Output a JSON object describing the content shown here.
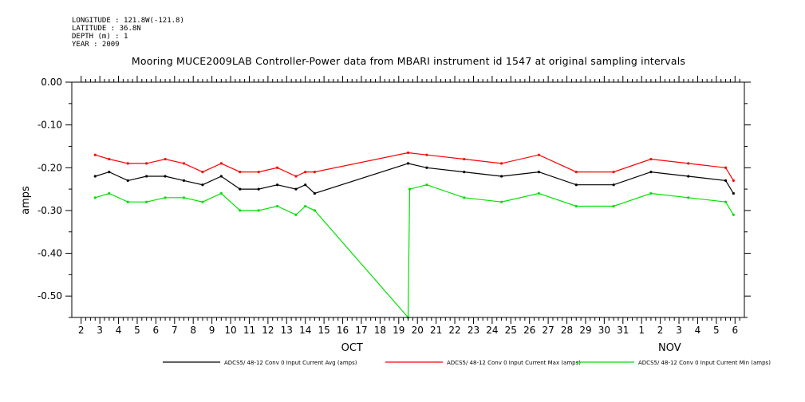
{
  "header": {
    "longitude": "LONGITUDE : 121.8W(-121.8)",
    "latitude": "LATITUDE : 36.8N",
    "depth": "DEPTH (m) : 1",
    "year": "YEAR : 2009"
  },
  "chart_data": {
    "type": "line",
    "title": "Mooring MUCE2009LAB Controller-Power data from MBARI instrument id 1547 at original sampling intervals",
    "ylabel": "amps",
    "ylim": [
      -0.55,
      0.0
    ],
    "yticks": [
      "0.00",
      "-0.10",
      "-0.20",
      "-0.30",
      "-0.40",
      "-0.50"
    ],
    "yticks_values": [
      0.0,
      -0.1,
      -0.2,
      -0.3,
      -0.4,
      -0.5
    ],
    "xlim": [
      "2009-10-01T12:00",
      "2009-11-06T12:00"
    ],
    "xtick_labels": [
      "2",
      "3",
      "4",
      "5",
      "6",
      "7",
      "8",
      "9",
      "10",
      "11",
      "12",
      "13",
      "14",
      "15",
      "16",
      "17",
      "18",
      "19",
      "20",
      "21",
      "22",
      "23",
      "24",
      "25",
      "26",
      "27",
      "28",
      "29",
      "30",
      "31",
      "1",
      "2",
      "3",
      "4",
      "5",
      "6"
    ],
    "month_labels": [
      "OCT",
      "NOV"
    ],
    "grid": false,
    "legend_position": "bottom",
    "series": [
      {
        "name": "ADCS5/ 48-12 Conv 0 Input Current Avg (amps)",
        "color": "#000000",
        "x": [
          "2009-10-02T18:00",
          "2009-10-03T12:00",
          "2009-10-04T12:00",
          "2009-10-05T12:00",
          "2009-10-06T12:00",
          "2009-10-07T12:00",
          "2009-10-08T12:00",
          "2009-10-09T12:00",
          "2009-10-10T12:00",
          "2009-10-11T12:00",
          "2009-10-12T12:00",
          "2009-10-13T12:00",
          "2009-10-14T00:00",
          "2009-10-14T12:00",
          "2009-10-19T12:00",
          "2009-10-20T12:00",
          "2009-10-22T12:00",
          "2009-10-24T12:00",
          "2009-10-26T12:00",
          "2009-10-28T12:00",
          "2009-10-30T12:00",
          "2009-11-01T12:00",
          "2009-11-03T12:00",
          "2009-11-05T12:00",
          "2009-11-05T22:00"
        ],
        "y": [
          -0.22,
          -0.21,
          -0.23,
          -0.22,
          -0.22,
          -0.23,
          -0.24,
          -0.22,
          -0.25,
          -0.25,
          -0.24,
          -0.25,
          -0.24,
          -0.26,
          -0.19,
          -0.2,
          -0.21,
          -0.22,
          -0.21,
          -0.24,
          -0.24,
          -0.21,
          -0.22,
          -0.23,
          -0.26
        ]
      },
      {
        "name": "ADCS5/ 48-12 Conv 0 Input Current Max (amps)",
        "color": "#ff0000",
        "x": [
          "2009-10-02T18:00",
          "2009-10-03T12:00",
          "2009-10-04T12:00",
          "2009-10-05T12:00",
          "2009-10-06T12:00",
          "2009-10-07T12:00",
          "2009-10-08T12:00",
          "2009-10-09T12:00",
          "2009-10-10T12:00",
          "2009-10-11T12:00",
          "2009-10-12T12:00",
          "2009-10-13T12:00",
          "2009-10-14T00:00",
          "2009-10-14T12:00",
          "2009-10-19T12:00",
          "2009-10-20T12:00",
          "2009-10-22T12:00",
          "2009-10-24T12:00",
          "2009-10-26T12:00",
          "2009-10-28T12:00",
          "2009-10-30T12:00",
          "2009-11-01T12:00",
          "2009-11-03T12:00",
          "2009-11-05T12:00",
          "2009-11-05T22:00"
        ],
        "y": [
          -0.17,
          -0.18,
          -0.19,
          -0.19,
          -0.18,
          -0.19,
          -0.21,
          -0.19,
          -0.21,
          -0.21,
          -0.2,
          -0.22,
          -0.21,
          -0.21,
          -0.165,
          -0.17,
          -0.18,
          -0.19,
          -0.17,
          -0.21,
          -0.21,
          -0.18,
          -0.19,
          -0.2,
          -0.23
        ]
      },
      {
        "name": "ADCS5/ 48-12 Conv 0 Input Current Min (amps)",
        "color": "#00e000",
        "x": [
          "2009-10-02T18:00",
          "2009-10-03T12:00",
          "2009-10-04T12:00",
          "2009-10-05T12:00",
          "2009-10-06T12:00",
          "2009-10-07T12:00",
          "2009-10-08T12:00",
          "2009-10-09T12:00",
          "2009-10-10T12:00",
          "2009-10-11T12:00",
          "2009-10-12T12:00",
          "2009-10-13T12:00",
          "2009-10-14T00:00",
          "2009-10-14T12:00",
          "2009-10-19T12:00",
          "2009-10-19T14:00",
          "2009-10-20T12:00",
          "2009-10-22T12:00",
          "2009-10-24T12:00",
          "2009-10-26T12:00",
          "2009-10-28T12:00",
          "2009-10-30T12:00",
          "2009-11-01T12:00",
          "2009-11-03T12:00",
          "2009-11-05T12:00",
          "2009-11-05T22:00"
        ],
        "y": [
          -0.27,
          -0.26,
          -0.28,
          -0.28,
          -0.27,
          -0.27,
          -0.28,
          -0.26,
          -0.3,
          -0.3,
          -0.29,
          -0.31,
          -0.29,
          -0.3,
          -0.55,
          -0.25,
          -0.24,
          -0.27,
          -0.28,
          -0.26,
          -0.29,
          -0.29,
          -0.26,
          -0.27,
          -0.28,
          -0.31
        ]
      }
    ]
  }
}
